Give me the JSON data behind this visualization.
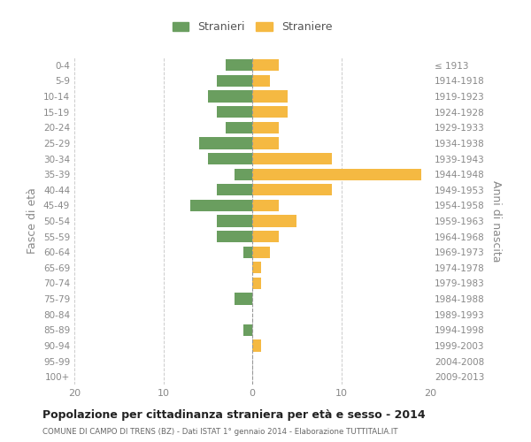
{
  "age_groups": [
    "0-4",
    "5-9",
    "10-14",
    "15-19",
    "20-24",
    "25-29",
    "30-34",
    "35-39",
    "40-44",
    "45-49",
    "50-54",
    "55-59",
    "60-64",
    "65-69",
    "70-74",
    "75-79",
    "80-84",
    "85-89",
    "90-94",
    "95-99",
    "100+"
  ],
  "birth_years": [
    "2009-2013",
    "2004-2008",
    "1999-2003",
    "1994-1998",
    "1989-1993",
    "1984-1988",
    "1979-1983",
    "1974-1978",
    "1969-1973",
    "1964-1968",
    "1959-1963",
    "1954-1958",
    "1949-1953",
    "1944-1948",
    "1939-1943",
    "1934-1938",
    "1929-1933",
    "1924-1928",
    "1919-1923",
    "1914-1918",
    "≤ 1913"
  ],
  "males": [
    3,
    4,
    5,
    4,
    3,
    6,
    5,
    2,
    4,
    7,
    4,
    4,
    1,
    0,
    0,
    2,
    0,
    1,
    0,
    0,
    0
  ],
  "females": [
    3,
    2,
    4,
    4,
    3,
    3,
    9,
    19,
    9,
    3,
    5,
    3,
    2,
    1,
    1,
    0,
    0,
    0,
    1,
    0,
    0
  ],
  "male_color": "#6a9e5f",
  "female_color": "#f5b942",
  "background_color": "#ffffff",
  "grid_color": "#cccccc",
  "title": "Popolazione per cittadinanza straniera per età e sesso - 2014",
  "subtitle": "COMUNE DI CAMPO DI TRENS (BZ) - Dati ISTAT 1° gennaio 2014 - Elaborazione TUTTITALIA.IT",
  "ylabel_left": "Fasce di età",
  "ylabel_right": "Anni di nascita",
  "legend_male": "Stranieri",
  "legend_female": "Straniere",
  "xlim": 20,
  "label_color": "#888888"
}
